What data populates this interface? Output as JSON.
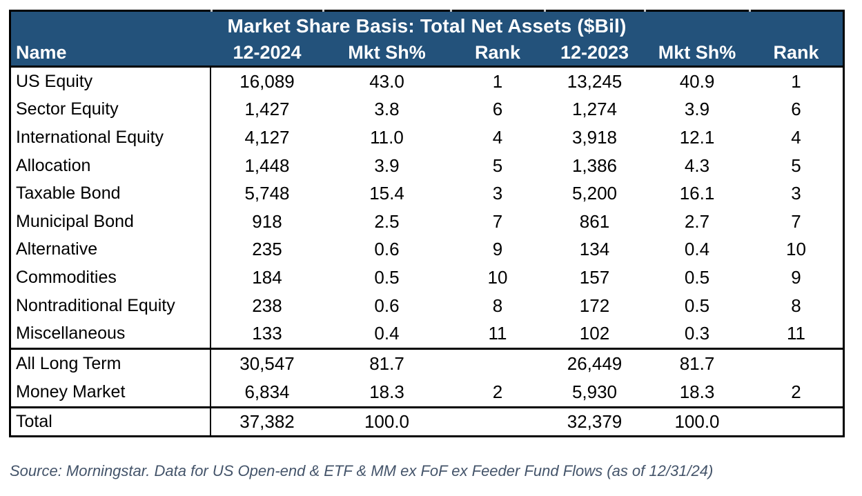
{
  "table": {
    "title": "Market Share Basis: Total Net Assets ($Bil)",
    "headers": [
      "Name",
      "12-2024",
      "Mkt Sh%",
      "Rank",
      "12-2023",
      "Mkt Sh%",
      "Rank"
    ],
    "category_rows": [
      {
        "name": "US Equity",
        "tna_2024": "16,089",
        "mkt_sh_2024": "43.0",
        "rank_2024": "1",
        "tna_2023": "13,245",
        "mkt_sh_2023": "40.9",
        "rank_2023": "1"
      },
      {
        "name": "Sector Equity",
        "tna_2024": "1,427",
        "mkt_sh_2024": "3.8",
        "rank_2024": "6",
        "tna_2023": "1,274",
        "mkt_sh_2023": "3.9",
        "rank_2023": "6"
      },
      {
        "name": "International Equity",
        "tna_2024": "4,127",
        "mkt_sh_2024": "11.0",
        "rank_2024": "4",
        "tna_2023": "3,918",
        "mkt_sh_2023": "12.1",
        "rank_2023": "4"
      },
      {
        "name": "Allocation",
        "tna_2024": "1,448",
        "mkt_sh_2024": "3.9",
        "rank_2024": "5",
        "tna_2023": "1,386",
        "mkt_sh_2023": "4.3",
        "rank_2023": "5"
      },
      {
        "name": "Taxable Bond",
        "tna_2024": "5,748",
        "mkt_sh_2024": "15.4",
        "rank_2024": "3",
        "tna_2023": "5,200",
        "mkt_sh_2023": "16.1",
        "rank_2023": "3"
      },
      {
        "name": "Municipal Bond",
        "tna_2024": "918",
        "mkt_sh_2024": "2.5",
        "rank_2024": "7",
        "tna_2023": "861",
        "mkt_sh_2023": "2.7",
        "rank_2023": "7"
      },
      {
        "name": "Alternative",
        "tna_2024": "235",
        "mkt_sh_2024": "0.6",
        "rank_2024": "9",
        "tna_2023": "134",
        "mkt_sh_2023": "0.4",
        "rank_2023": "10"
      },
      {
        "name": "Commodities",
        "tna_2024": "184",
        "mkt_sh_2024": "0.5",
        "rank_2024": "10",
        "tna_2023": "157",
        "mkt_sh_2023": "0.5",
        "rank_2023": "9"
      },
      {
        "name": "Nontraditional Equity",
        "tna_2024": "238",
        "mkt_sh_2024": "0.6",
        "rank_2024": "8",
        "tna_2023": "172",
        "mkt_sh_2023": "0.5",
        "rank_2023": "8"
      },
      {
        "name": "Miscellaneous",
        "tna_2024": "133",
        "mkt_sh_2024": "0.4",
        "rank_2024": "11",
        "tna_2023": "102",
        "mkt_sh_2023": "0.3",
        "rank_2023": "11"
      }
    ],
    "summary_rows": [
      {
        "name": "All Long Term",
        "tna_2024": "30,547",
        "mkt_sh_2024": "81.7",
        "rank_2024": "",
        "tna_2023": "26,449",
        "mkt_sh_2023": "81.7",
        "rank_2023": ""
      },
      {
        "name": "Money Market",
        "tna_2024": "6,834",
        "mkt_sh_2024": "18.3",
        "rank_2024": "2",
        "tna_2023": "5,930",
        "mkt_sh_2023": "18.3",
        "rank_2023": "2"
      }
    ],
    "total_row": {
      "name": "Total",
      "tna_2024": "37,382",
      "mkt_sh_2024": "100.0",
      "rank_2024": "",
      "tna_2023": "32,379",
      "mkt_sh_2023": "100.0",
      "rank_2023": ""
    }
  },
  "source": "Source: Morningstar. Data for US Open-end & ETF & MM ex FoF ex Feeder Fund Flows (as of 12/31/24)",
  "colors": {
    "header_bg": "#23527B",
    "header_text": "#FFFFFF",
    "body_text": "#000000",
    "border": "#000000",
    "source_text": "#44546A"
  }
}
